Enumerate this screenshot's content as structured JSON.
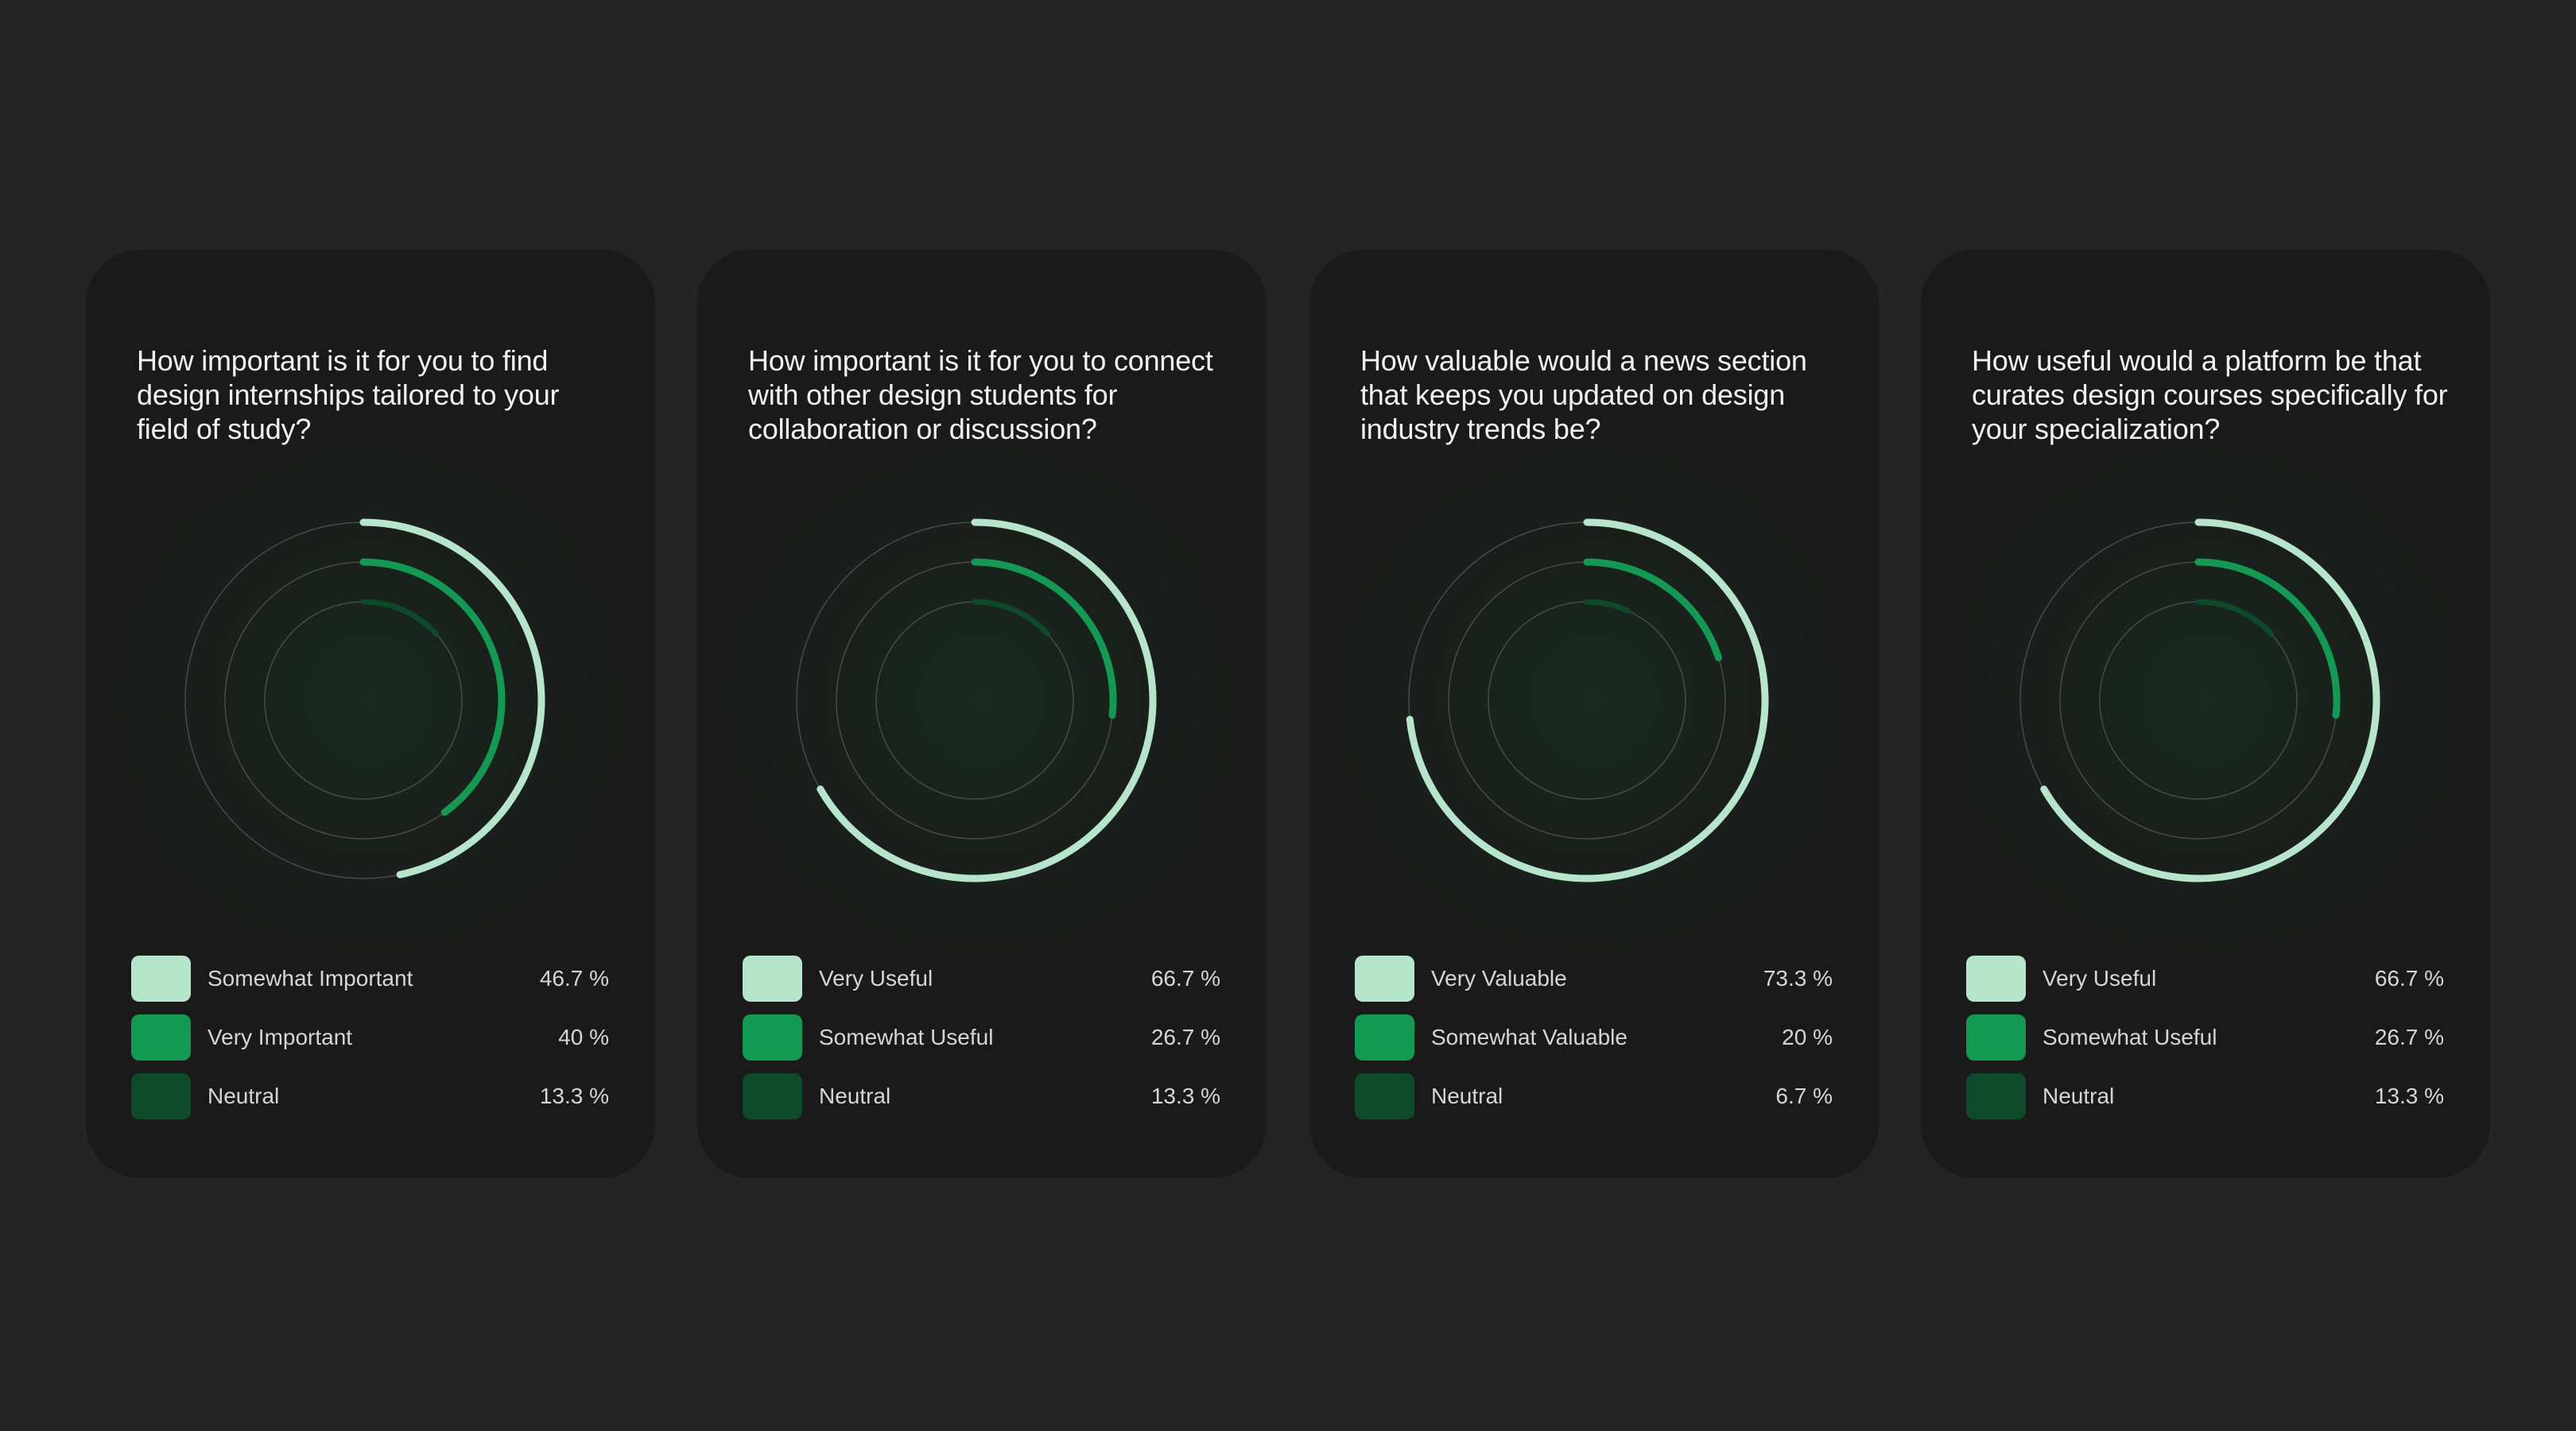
{
  "colors": {
    "background": "#242424",
    "card": "#1a1a1a",
    "track": "#4a4a4a",
    "light_green": "#b5e6cc",
    "mid_green": "#129a52",
    "dark_green": "#0d4a2a"
  },
  "chart_data": [
    {
      "type": "radial_bar",
      "title": "How important is it for you to find design internships tailored to your field of study?",
      "series": [
        {
          "name": "Somewhat Important",
          "value": 46.7,
          "label": "46.7 %",
          "color": "#b5e6cc"
        },
        {
          "name": "Very Important",
          "value": 40,
          "label": "40 %",
          "color": "#129a52"
        },
        {
          "name": "Neutral",
          "value": 13.3,
          "label": "13.3 %",
          "color": "#0d4a2a"
        }
      ]
    },
    {
      "type": "radial_bar",
      "title": "How important is it for you to connect with other design students for collaboration or discussion?",
      "series": [
        {
          "name": "Very Useful",
          "value": 66.7,
          "label": "66.7 %",
          "color": "#b5e6cc"
        },
        {
          "name": "Somewhat Useful",
          "value": 26.7,
          "label": "26.7 %",
          "color": "#129a52"
        },
        {
          "name": "Neutral",
          "value": 13.3,
          "label": "13.3 %",
          "color": "#0d4a2a"
        }
      ]
    },
    {
      "type": "radial_bar",
      "title": "How valuable would a news section that keeps you updated on design industry trends be?",
      "series": [
        {
          "name": "Very Valuable",
          "value": 73.3,
          "label": "73.3 %",
          "color": "#b5e6cc"
        },
        {
          "name": "Somewhat Valuable",
          "value": 20,
          "label": "20 %",
          "color": "#129a52"
        },
        {
          "name": "Neutral",
          "value": 6.7,
          "label": "6.7 %",
          "color": "#0d4a2a"
        }
      ]
    },
    {
      "type": "radial_bar",
      "title": "How useful would a platform be that curates design courses specifically for your specialization?",
      "series": [
        {
          "name": "Very Useful",
          "value": 66.7,
          "label": "66.7 %",
          "color": "#b5e6cc"
        },
        {
          "name": "Somewhat Useful",
          "value": 26.7,
          "label": "26.7 %",
          "color": "#129a52"
        },
        {
          "name": "Neutral",
          "value": 13.3,
          "label": "13.3 %",
          "color": "#0d4a2a"
        }
      ]
    }
  ]
}
